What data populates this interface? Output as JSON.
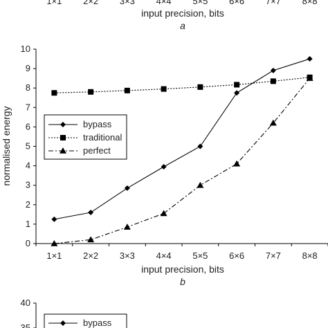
{
  "top_fragment": {
    "tick_labels": [
      "1×1",
      "2×2",
      "3×3",
      "4×4",
      "5×5",
      "6×6",
      "7×7",
      "8×8"
    ],
    "xlabel": "input precision, bits",
    "sublabel": "a"
  },
  "chart_data": {
    "type": "line",
    "categories": [
      "1×1",
      "2×2",
      "3×3",
      "4×4",
      "5×5",
      "6×6",
      "7×7",
      "8×8"
    ],
    "xlabel": "input precision, bits",
    "ylabel": "normalised energy",
    "ylim": [
      0,
      10
    ],
    "yticks": [
      0,
      1,
      2,
      3,
      4,
      5,
      6,
      7,
      8,
      9,
      10
    ],
    "sublabel": "b",
    "legend_position": "middle-left",
    "series": [
      {
        "name": "bypass",
        "marker": "diamond",
        "line": "solid",
        "values": [
          1.25,
          1.6,
          2.85,
          3.95,
          5.0,
          7.75,
          8.9,
          9.5
        ]
      },
      {
        "name": "traditional",
        "marker": "square",
        "line": "dotted",
        "values": [
          7.75,
          7.8,
          7.87,
          7.95,
          8.05,
          8.17,
          8.35,
          8.55
        ]
      },
      {
        "name": "perfect",
        "marker": "triangle",
        "line": "dash-dot",
        "values": [
          0.0,
          0.2,
          0.85,
          1.55,
          3.0,
          4.1,
          6.2,
          8.5
        ]
      }
    ]
  },
  "bottom_fragment": {
    "y_ticks": [
      "40",
      "35"
    ],
    "legend_first": "bypass"
  }
}
